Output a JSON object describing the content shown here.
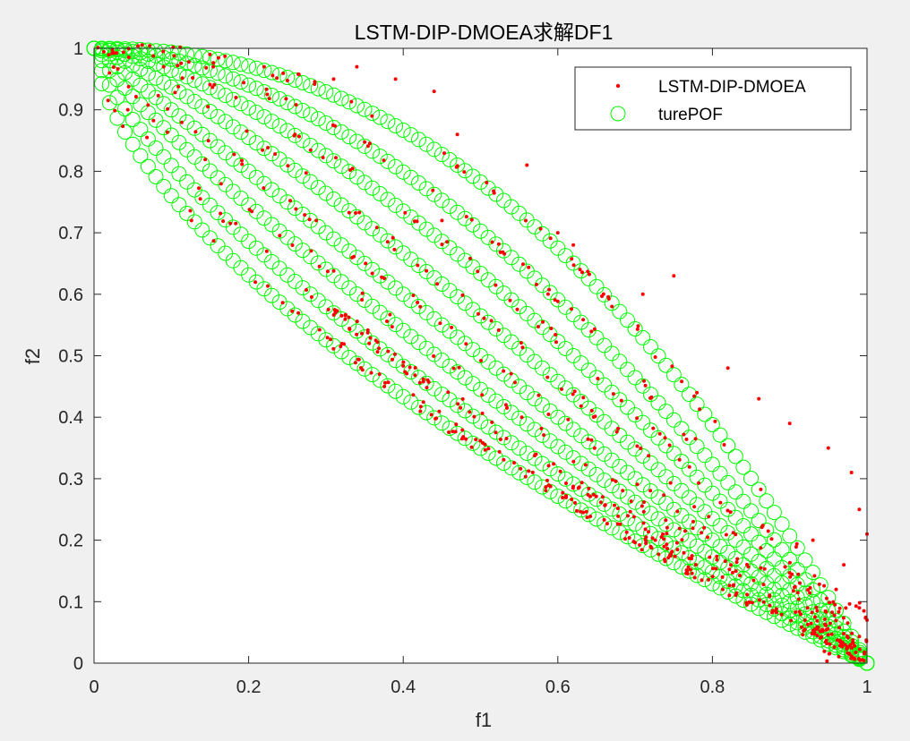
{
  "chart_data": {
    "type": "scatter",
    "title": "LSTM-DIP-DMOEA求解DF1",
    "xlabel": "f1",
    "ylabel": "f2",
    "xlim": [
      0,
      1
    ],
    "ylim": [
      0,
      1
    ],
    "xticks": [
      "0",
      "0.2",
      "0.4",
      "0.6",
      "0.8",
      "1"
    ],
    "yticks": [
      "0",
      "0.1",
      "0.2",
      "0.3",
      "0.4",
      "0.5",
      "0.6",
      "0.7",
      "0.8",
      "0.9",
      "1"
    ],
    "legend_position": "top-right",
    "grid": false,
    "series": [
      {
        "name": "LSTM-DIP-DMOEA",
        "marker": "point",
        "color": "#ff0000",
        "description_of_values": "points scattered along each true front f2 = 1 - f1^H plus scattered outliers",
        "front_exponents": [
          0.62,
          0.72,
          0.85,
          1.0,
          1.2,
          1.45,
          1.75,
          2.2
        ],
        "outliers": [
          [
            0.34,
            0.97
          ],
          [
            0.39,
            0.95
          ],
          [
            0.44,
            0.93
          ],
          [
            0.56,
            0.81
          ],
          [
            0.62,
            0.68
          ],
          [
            0.75,
            0.63
          ],
          [
            0.71,
            0.6
          ],
          [
            0.86,
            0.43
          ],
          [
            0.9,
            0.39
          ],
          [
            0.95,
            0.35
          ],
          [
            0.98,
            0.31
          ],
          [
            0.99,
            0.25
          ],
          [
            1.0,
            0.21
          ],
          [
            0.93,
            0.2
          ],
          [
            0.97,
            0.16
          ],
          [
            0.96,
            0.12
          ],
          [
            0.99,
            0.09
          ],
          [
            1.0,
            0.07
          ],
          [
            0.82,
            0.48
          ],
          [
            0.78,
            0.44
          ],
          [
            0.67,
            0.58
          ],
          [
            0.6,
            0.7
          ],
          [
            0.47,
            0.86
          ],
          [
            0.31,
            0.95
          ],
          [
            0.15,
            0.99
          ],
          [
            0.22,
            0.97
          ],
          [
            0.09,
            0.97
          ],
          [
            0.02,
            0.96
          ],
          [
            0.26,
            0.86
          ],
          [
            0.45,
            0.72
          ]
        ]
      },
      {
        "name": "turePOF",
        "marker": "circle",
        "color": "#00ff00",
        "description_of_values": "true Pareto fronts f2 = 1 - f1^H for several time steps",
        "front_exponents": [
          0.62,
          0.72,
          0.85,
          1.0,
          1.2,
          1.45,
          1.75,
          2.2
        ],
        "x": [
          0,
          0.01,
          0.02,
          0.03,
          0.04,
          0.05,
          0.06,
          0.07,
          0.08,
          0.09,
          0.1,
          0.11,
          0.12,
          0.13,
          0.14,
          0.15,
          0.16,
          0.17,
          0.18,
          0.19,
          0.2,
          0.21,
          0.22,
          0.23,
          0.24,
          0.25,
          0.26,
          0.27,
          0.28,
          0.29,
          0.3,
          0.31,
          0.32,
          0.33,
          0.34,
          0.35,
          0.36,
          0.37,
          0.38,
          0.39,
          0.4,
          0.41,
          0.42,
          0.43,
          0.44,
          0.45,
          0.46,
          0.47,
          0.48,
          0.49,
          0.5,
          0.51,
          0.52,
          0.53,
          0.54,
          0.55,
          0.56,
          0.57,
          0.58,
          0.59,
          0.6,
          0.61,
          0.62,
          0.63,
          0.64,
          0.65,
          0.66,
          0.67,
          0.68,
          0.69,
          0.7,
          0.71,
          0.72,
          0.73,
          0.74,
          0.75,
          0.76,
          0.77,
          0.78,
          0.79,
          0.8,
          0.81,
          0.82,
          0.83,
          0.84,
          0.85,
          0.86,
          0.87,
          0.88,
          0.89,
          0.9,
          0.91,
          0.92,
          0.93,
          0.94,
          0.95,
          0.96,
          0.97,
          0.98,
          0.99,
          1.0
        ]
      }
    ]
  },
  "colors": {
    "figure_background": "#f0f0f0",
    "axes_background": "#ffffff",
    "axis_line": "#262626"
  }
}
